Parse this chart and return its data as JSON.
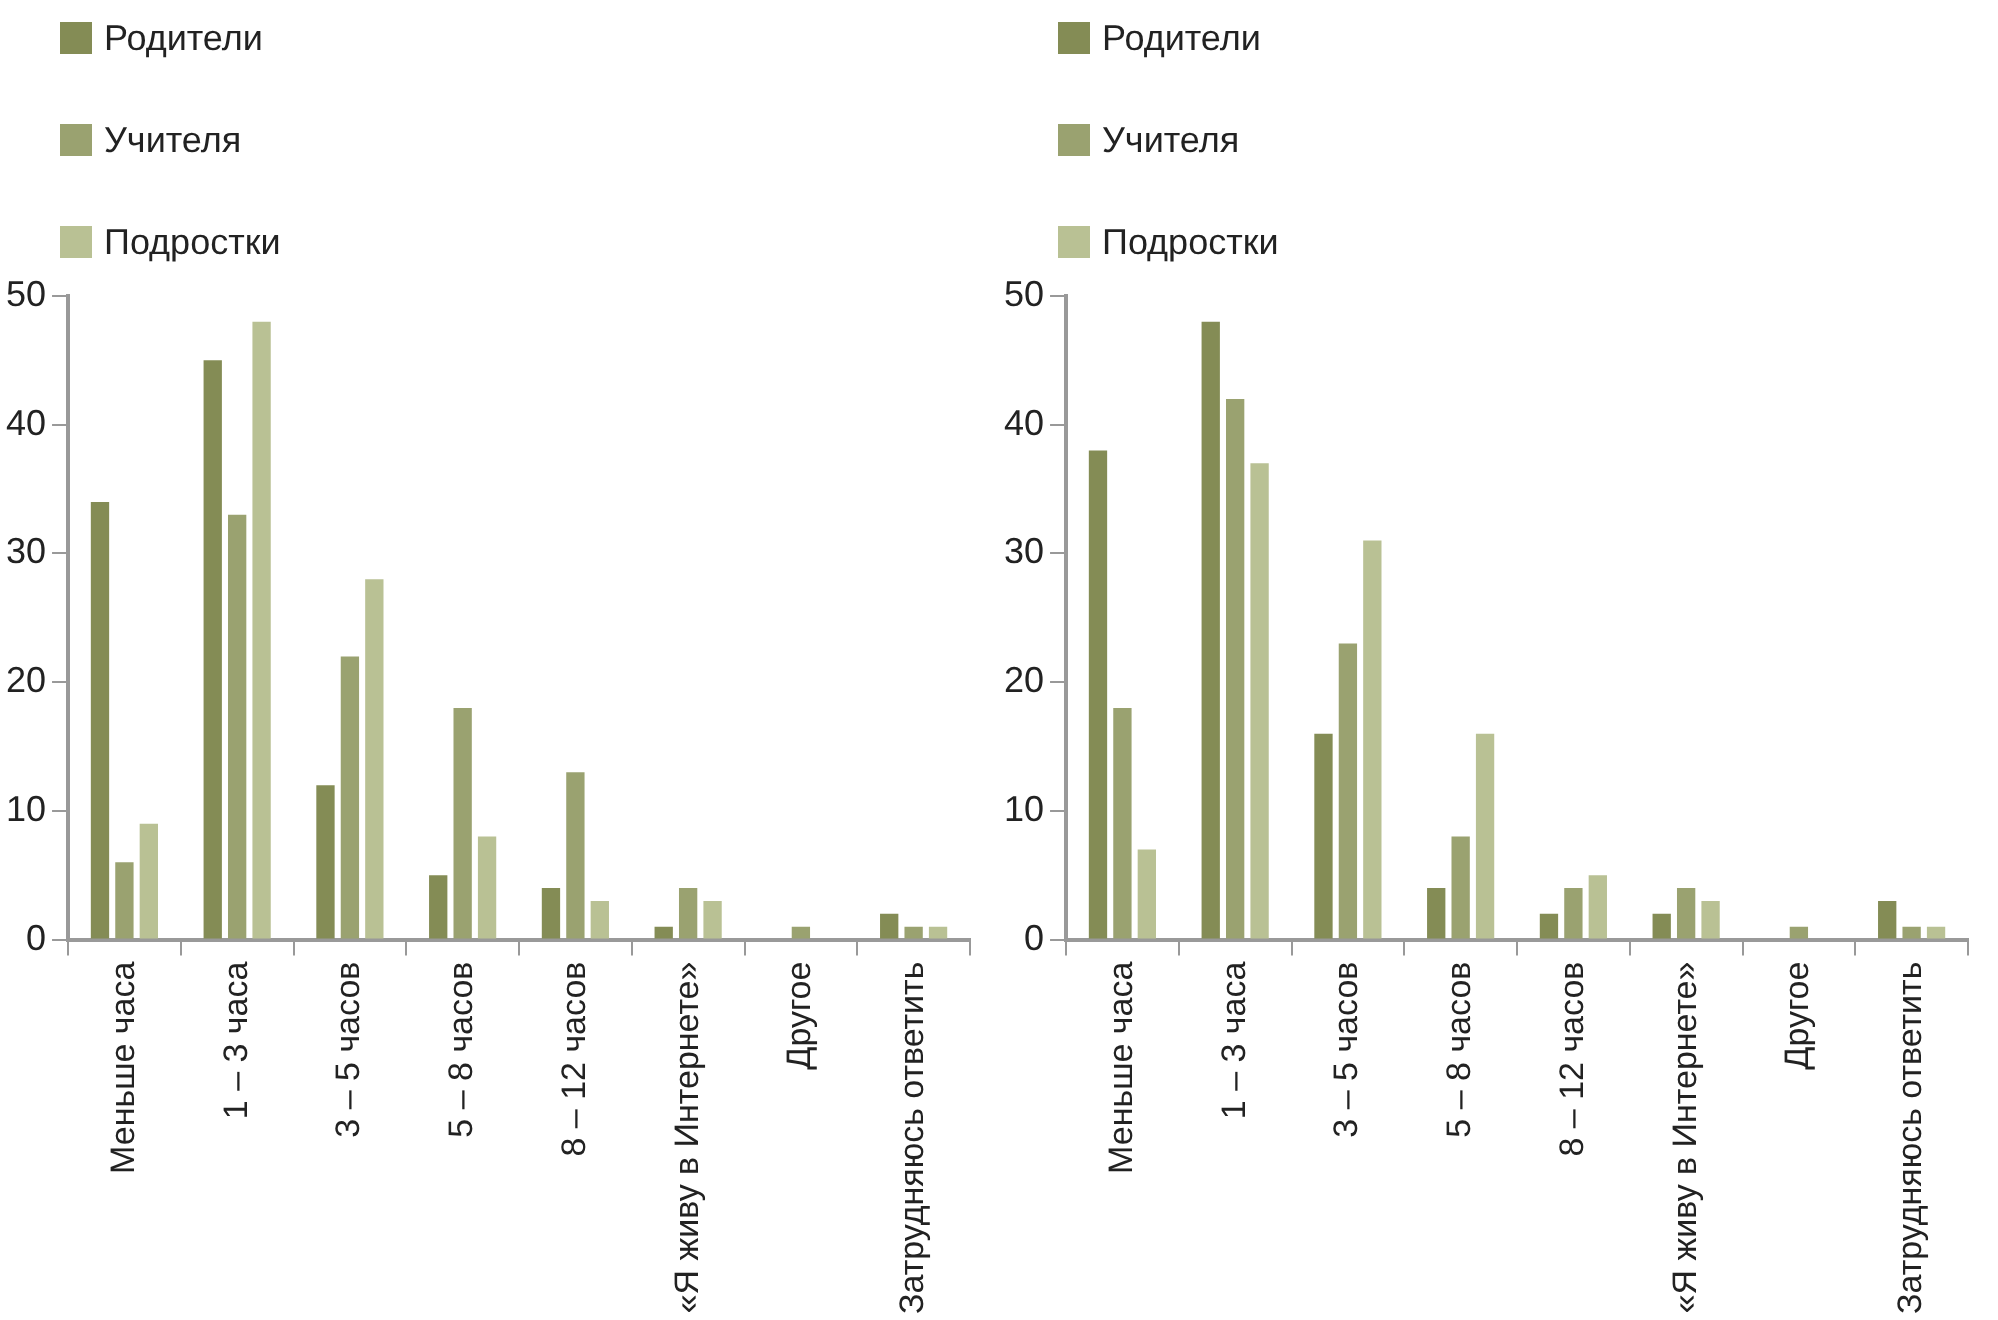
{
  "chart_data": [
    {
      "type": "bar",
      "categories": [
        "Меньше часа",
        "1 – 3 часа",
        "3 – 5 часов",
        "5 – 8 часов",
        "8 – 12 часов",
        "«Я живу в Интернете»",
        "Другое",
        "Затрудняюсь ответить"
      ],
      "series": [
        {
          "name": "Родители",
          "color": "#848c55",
          "values": [
            34,
            45,
            12,
            5,
            4,
            1,
            0,
            2
          ]
        },
        {
          "name": "Учителя",
          "color": "#9aa270",
          "values": [
            6,
            33,
            22,
            18,
            13,
            4,
            1,
            1
          ]
        },
        {
          "name": "Подростки",
          "color": "#b9c194",
          "values": [
            9,
            48,
            28,
            8,
            3,
            3,
            0,
            1
          ]
        }
      ],
      "ylim": [
        0,
        50
      ],
      "yticks": [
        0,
        10,
        20,
        30,
        40,
        50
      ],
      "grid": false,
      "legend": "top left"
    },
    {
      "type": "bar",
      "categories": [
        "Меньше часа",
        "1 – 3 часа",
        "3 – 5 часов",
        "5 – 8 часов",
        "8 – 12 часов",
        "«Я живу в Интернете»",
        "Другое",
        "Затрудняюсь ответить"
      ],
      "series": [
        {
          "name": "Родители",
          "color": "#848c55",
          "values": [
            38,
            48,
            16,
            4,
            2,
            2,
            0,
            3
          ]
        },
        {
          "name": "Учителя",
          "color": "#9aa270",
          "values": [
            18,
            42,
            23,
            8,
            4,
            4,
            1,
            1
          ]
        },
        {
          "name": "Подростки",
          "color": "#b9c194",
          "values": [
            7,
            37,
            31,
            16,
            5,
            3,
            0,
            1
          ]
        }
      ],
      "ylim": [
        0,
        50
      ],
      "yticks": [
        0,
        10,
        20,
        30,
        40,
        50
      ],
      "grid": false,
      "legend": "top left"
    }
  ]
}
